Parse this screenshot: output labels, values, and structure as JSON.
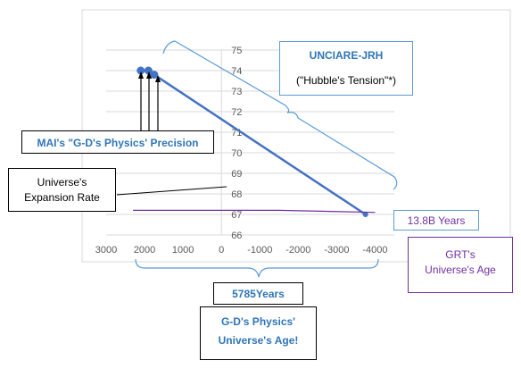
{
  "chart_data": {
    "type": "line",
    "xlim": [
      3000,
      -4500
    ],
    "ylim": [
      66,
      75
    ],
    "xticks": [
      3000,
      2000,
      1000,
      0,
      -1000,
      -2000,
      -3000,
      -4000
    ],
    "xtick_labels": [
      "3000",
      "2000",
      "1000",
      "0",
      "-1000",
      "-2000",
      "-3000",
      "-4000"
    ],
    "yticks": [
      66,
      67,
      68,
      69,
      70,
      71,
      72,
      73,
      74,
      75
    ],
    "grid": true,
    "series": [
      {
        "color": "#4472c4",
        "points": [
          [
            2100,
            74.0
          ],
          [
            1900,
            74.0
          ],
          [
            1750,
            73.8
          ],
          [
            -3750,
            67.0
          ]
        ]
      },
      {
        "color": "#7030a0",
        "points": [
          [
            2300,
            67.2
          ],
          [
            -1500,
            67.2
          ],
          [
            -4000,
            67.1
          ]
        ]
      }
    ]
  },
  "callouts": {
    "unciare_title": "UNCIARE-JRH",
    "unciare_sub": "(\"Hubble's Tension\"*)",
    "mai_label": "MAI's \"G-D's Physics' Precision",
    "expansion_line1": "Universe's",
    "expansion_line2": "Expansion Rate",
    "years_138": "13.8B Years",
    "grt_line1": "GRT's",
    "grt_line2": "Universe's Age",
    "years_5785": "5785Years",
    "gd_age_line1": "G-D's Physics'",
    "gd_age_line2": "Universe's Age!"
  },
  "colors": {
    "blue_text": "#2e75b6",
    "purple_text": "#7030a0",
    "line_blue": "#4472c4",
    "axis_text": "#595959",
    "grid": "#d9d9d9"
  }
}
